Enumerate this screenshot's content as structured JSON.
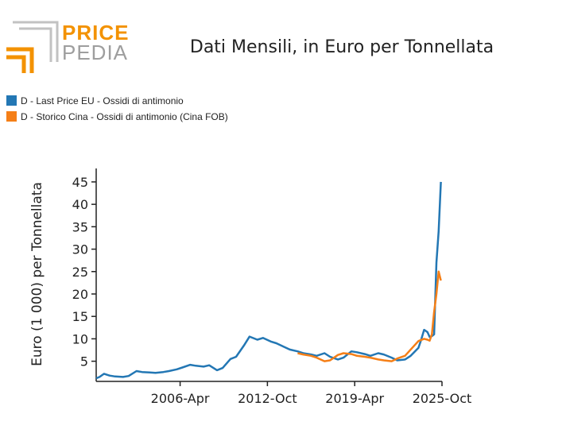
{
  "logo": {
    "line1": "PRICE",
    "line2": "PEDIA"
  },
  "colors": {
    "blue": "#2377b4",
    "orange": "#f57f17",
    "logo_orange": "#f39200",
    "logo_gray": "#9e9e9e"
  },
  "chart_data": {
    "type": "line",
    "title": "Dati Mensili, in Euro per Tonnellata",
    "xlabel": "",
    "ylabel": "Euro (1 000) per Tonnellata",
    "xlim": [
      "2000-01",
      "2025-10"
    ],
    "ylim": [
      0.5,
      48
    ],
    "yticks": [
      5,
      10,
      15,
      20,
      25,
      30,
      35,
      40,
      45
    ],
    "xticks": [
      {
        "date": "2006-04",
        "label": "2006-Apr"
      },
      {
        "date": "2012-10",
        "label": "2012-Oct"
      },
      {
        "date": "2019-04",
        "label": "2019-Apr"
      },
      {
        "date": "2025-10",
        "label": "2025-Oct"
      }
    ],
    "legend_position": "top-left",
    "series": [
      {
        "name": "D - Last Price EU - Ossidi di antimonio",
        "color": "#2377b4",
        "x": [
          "2000-01",
          "2000-04",
          "2000-08",
          "2001-01",
          "2001-06",
          "2002-01",
          "2002-06",
          "2003-01",
          "2003-06",
          "2004-01",
          "2004-06",
          "2005-01",
          "2005-06",
          "2006-01",
          "2006-06",
          "2007-01",
          "2007-06",
          "2008-01",
          "2008-06",
          "2009-01",
          "2009-06",
          "2010-01",
          "2010-06",
          "2011-01",
          "2011-06",
          "2012-01",
          "2012-06",
          "2013-01",
          "2013-06",
          "2014-01",
          "2014-06",
          "2015-01",
          "2015-06",
          "2016-01",
          "2016-06",
          "2017-01",
          "2017-06",
          "2018-01",
          "2018-06",
          "2019-01",
          "2019-06",
          "2020-01",
          "2020-06",
          "2021-01",
          "2021-06",
          "2022-01",
          "2022-06",
          "2023-01",
          "2023-06",
          "2024-01",
          "2024-03",
          "2024-06",
          "2024-09",
          "2024-11",
          "2025-01",
          "2025-03",
          "2025-05",
          "2025-07",
          "2025-09"
        ],
        "values": [
          1.2,
          1.5,
          2.2,
          1.8,
          1.6,
          1.5,
          1.7,
          2.8,
          2.6,
          2.5,
          2.4,
          2.6,
          2.8,
          3.2,
          3.6,
          4.2,
          4.0,
          3.8,
          4.1,
          3.0,
          3.5,
          5.5,
          6.0,
          8.5,
          10.5,
          9.8,
          10.2,
          9.4,
          9.0,
          8.2,
          7.6,
          7.2,
          6.8,
          6.5,
          6.2,
          6.8,
          6.0,
          5.4,
          5.8,
          7.2,
          7.0,
          6.6,
          6.2,
          6.8,
          6.5,
          5.8,
          5.2,
          5.4,
          6.2,
          8.0,
          9.5,
          12.0,
          11.5,
          10.4,
          10.6,
          11.0,
          27.0,
          34.0,
          45.0
        ]
      },
      {
        "name": "D - Storico Cina - Ossidi di antimonio (Cina FOB)",
        "color": "#f57f17",
        "x": [
          "2015-01",
          "2015-06",
          "2016-01",
          "2016-06",
          "2017-01",
          "2017-06",
          "2018-01",
          "2018-06",
          "2019-01",
          "2019-06",
          "2020-01",
          "2020-06",
          "2021-01",
          "2021-06",
          "2022-01",
          "2022-06",
          "2023-01",
          "2023-06",
          "2024-01",
          "2024-06",
          "2024-09",
          "2024-11",
          "2025-01",
          "2025-03",
          "2025-05",
          "2025-07",
          "2025-09"
        ],
        "values": [
          6.8,
          6.5,
          6.2,
          5.8,
          5.0,
          5.2,
          6.4,
          6.8,
          6.6,
          6.2,
          6.0,
          5.8,
          5.4,
          5.2,
          5.0,
          5.6,
          6.2,
          7.6,
          9.5,
          10.0,
          9.8,
          9.6,
          11.0,
          16.0,
          20.0,
          25.0,
          23.0
        ]
      }
    ]
  }
}
